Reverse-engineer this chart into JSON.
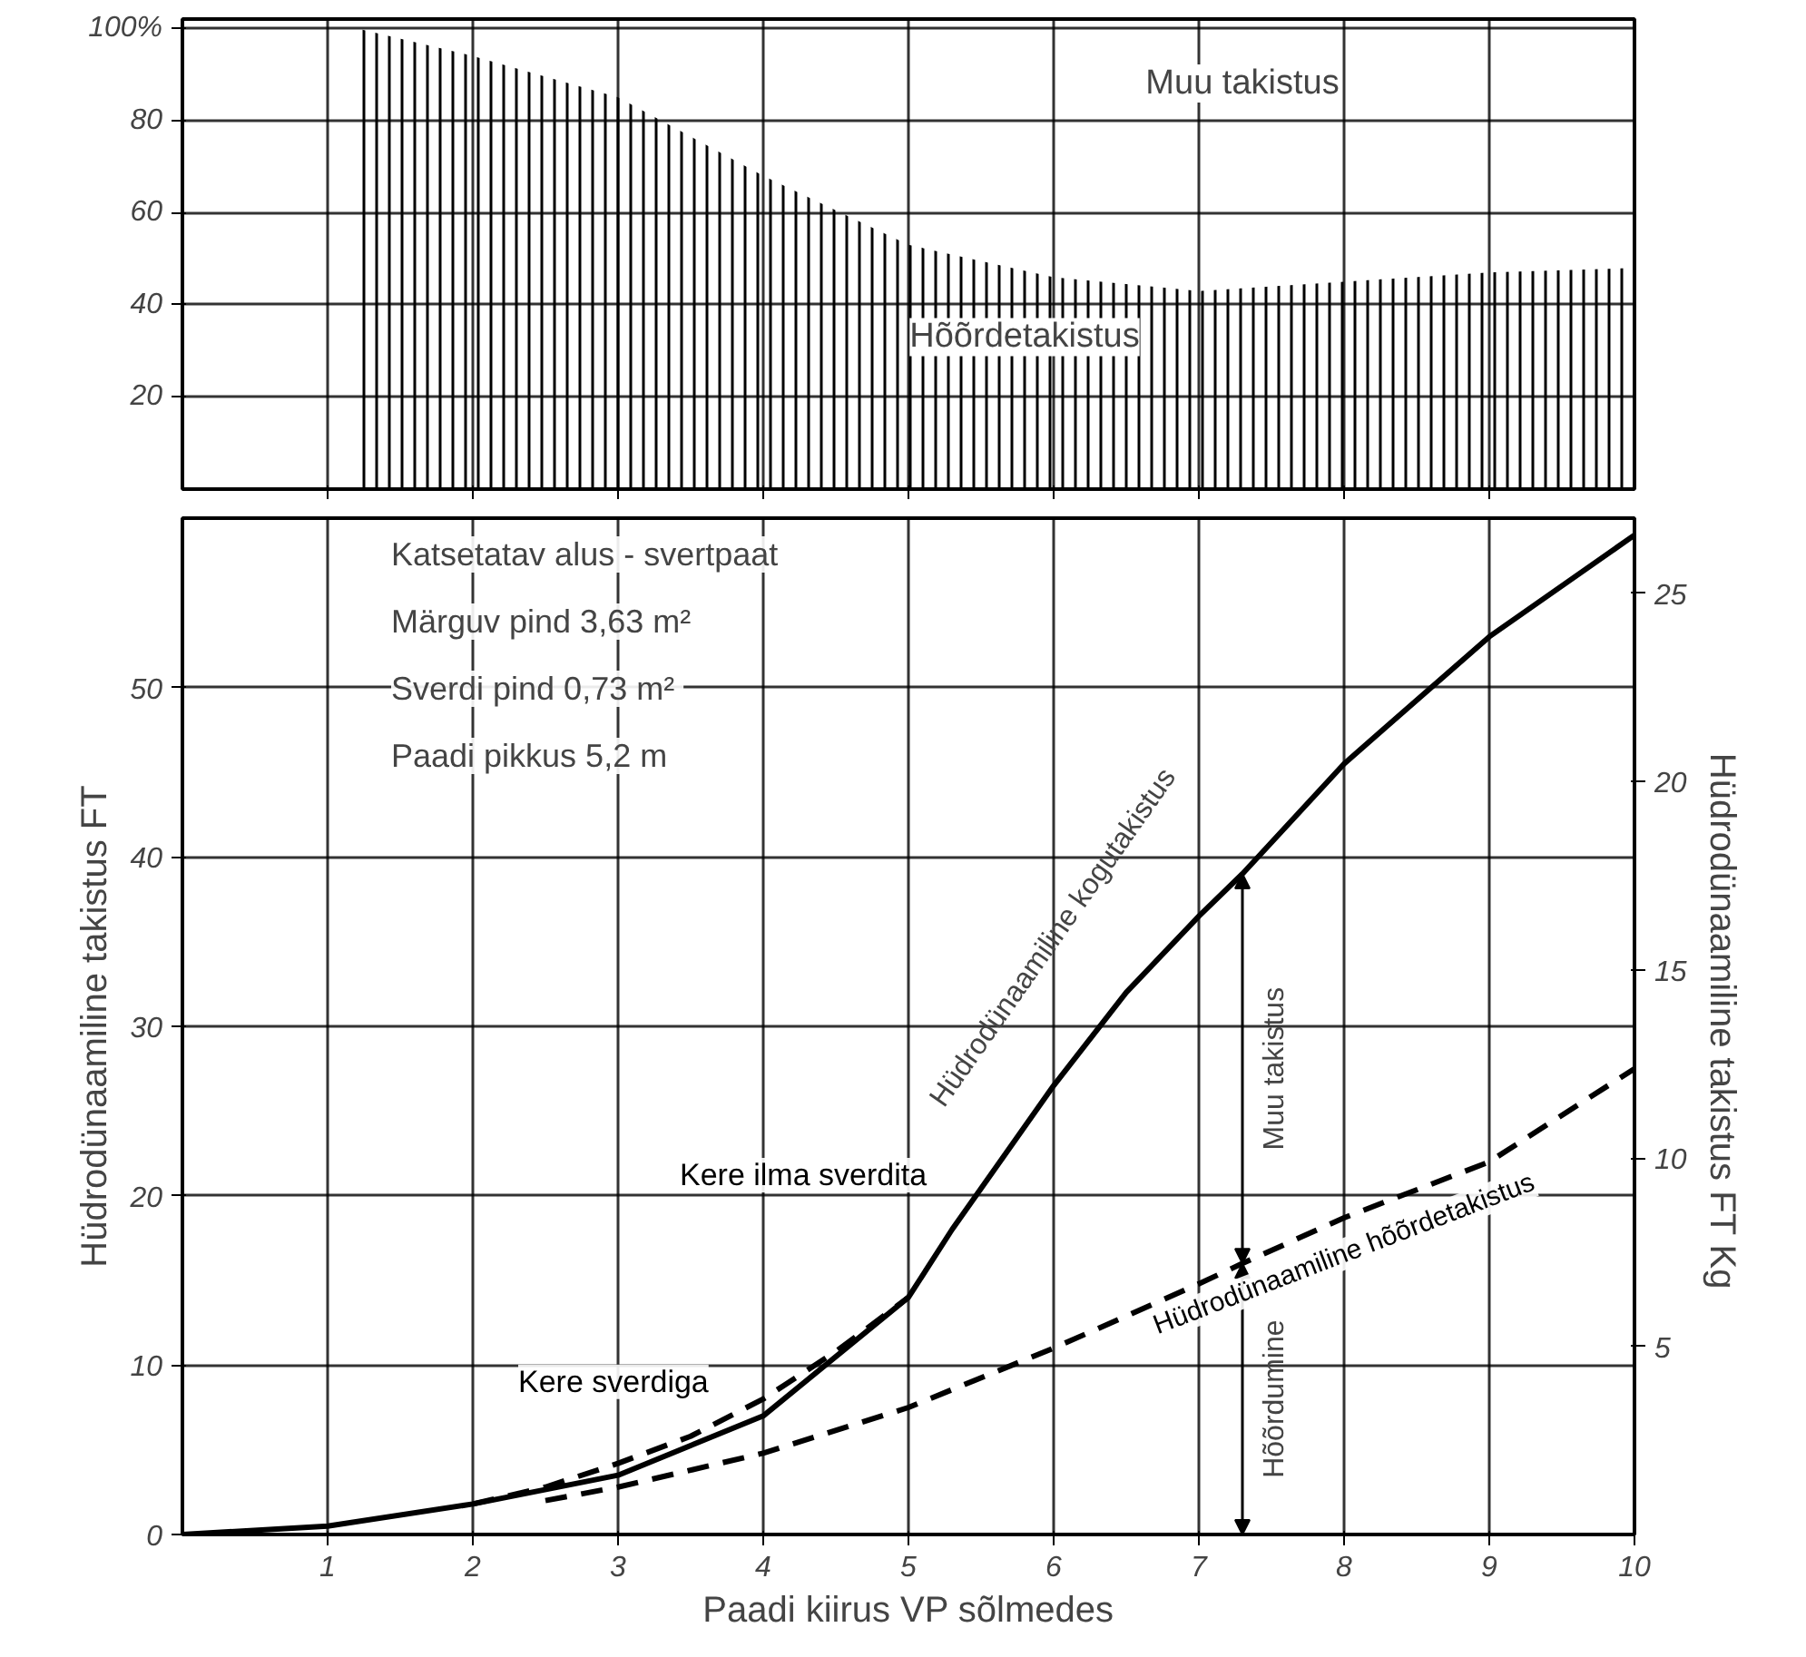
{
  "chart_data": [
    {
      "type": "area",
      "x": [
        1.2,
        2,
        3,
        4,
        5,
        6,
        7,
        8,
        9,
        10
      ],
      "series": [
        {
          "color": "#000000",
          "values": [
            100,
            94,
            85,
            68,
            53,
            46,
            43,
            45,
            47,
            48
          ]
        }
      ],
      "xlim": [
        0,
        10
      ],
      "xticks": [
        {
          "value": 1,
          "label": null
        },
        {
          "value": 2,
          "label": null
        },
        {
          "value": 3,
          "label": null
        },
        {
          "value": 4,
          "label": null
        },
        {
          "value": 5,
          "label": null
        },
        {
          "value": 6,
          "label": null
        },
        {
          "value": 7,
          "label": null
        },
        {
          "value": 8,
          "label": null
        },
        {
          "value": 9,
          "label": null
        }
      ],
      "ylim": [
        0,
        102
      ],
      "yticks": [
        20,
        40,
        60,
        80,
        {
          "value": 100,
          "label": "100%"
        }
      ],
      "tick_labels": "y",
      "grid": true,
      "annotations": [
        "Muu takistus",
        "Hõõrdetakistus"
      ]
    },
    {
      "type": "line",
      "series": [
        {
          "name": "Kere ilma sverdita",
          "color": "#000000",
          "line_style": "solid",
          "x": [
            0,
            1,
            2,
            3,
            4,
            5,
            5.3,
            6,
            6.5,
            7,
            7.3,
            8,
            9,
            10
          ],
          "values": [
            0,
            0.5,
            1.8,
            3.5,
            7,
            14,
            18,
            26.5,
            32,
            36.5,
            39,
            45.5,
            53,
            59
          ]
        },
        {
          "name": "Kere sverdiga",
          "color": "#000000",
          "line_style": "dashed",
          "x": [
            2,
            2.5,
            3,
            3.5,
            4,
            4.5,
            5
          ],
          "values": [
            1.8,
            2.8,
            4.2,
            5.8,
            8,
            10.8,
            14
          ]
        },
        {
          "name": "Hüdrodünaamiline hõõrdetakistus",
          "color": "#000000",
          "line_style": "dashed",
          "x": [
            2.5,
            3,
            4,
            5,
            6,
            7,
            7.3,
            8,
            9,
            10
          ],
          "values": [
            2,
            2.8,
            4.8,
            7.5,
            11,
            14.8,
            16,
            18.7,
            22,
            27.5
          ]
        }
      ],
      "xlabel": "Paadi kiirus VP sõlmedes",
      "ylabel": "Hüdrodünaamiline takistus FT",
      "y2label": "Hüdrodünaamiline takistus FT  Kg",
      "xlim": [
        0,
        10
      ],
      "xticks": [
        1,
        2,
        3,
        4,
        5,
        6,
        7,
        8,
        9,
        10
      ],
      "ylim": [
        0,
        60
      ],
      "yticks": [
        0,
        10,
        20,
        30,
        40,
        50
      ],
      "y2lim": [
        0,
        27
      ],
      "y2ticks": [
        5,
        10,
        15,
        20,
        25
      ],
      "grid": true,
      "marker": "none",
      "annotations": [
        "Katsetatav alus - svertpaat",
        "Märguv pind  3,63 m²",
        "Sverdi pind  0,73 m²",
        "Paadi pikkus  5,2 m",
        {
          "text": "Hüdrodünaamiline kogutakistus",
          "x": 6.5,
          "y": 32
        },
        "Muu takistus",
        "Hõõrdumine"
      ]
    }
  ]
}
